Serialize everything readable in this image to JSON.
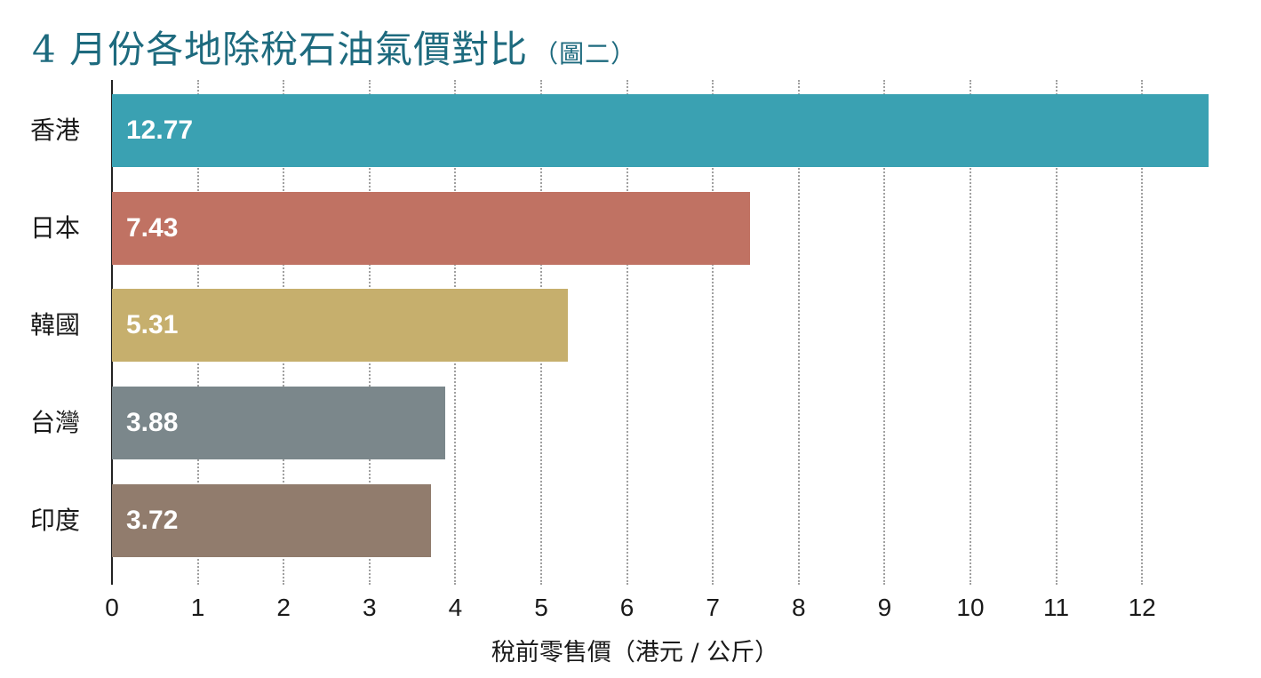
{
  "title": "4 月份各地除稅石油氣價對比",
  "subtitle": "（圖二）",
  "xlabel": "稅前零售價（港元 / 公斤）",
  "chart_data": {
    "type": "bar",
    "orientation": "horizontal",
    "title": "4 月份各地除稅石油氣價對比（圖二）",
    "xlabel": "稅前零售價（港元 / 公斤）",
    "ylabel": "",
    "categories": [
      "香港",
      "日本",
      "韓國",
      "台灣",
      "印度"
    ],
    "values": [
      12.77,
      7.43,
      5.31,
      3.88,
      3.72
    ],
    "value_labels": [
      "12.77",
      "7.43",
      "5.31",
      "3.88",
      "3.72"
    ],
    "colors": [
      "#3aa1b2",
      "#c07263",
      "#c6af6d",
      "#7b878b",
      "#917c6d"
    ],
    "xlim": [
      0,
      12.8
    ],
    "xticks": [
      "0",
      "1",
      "2",
      "3",
      "4",
      "5",
      "6",
      "7",
      "8",
      "9",
      "10",
      "11",
      "12"
    ],
    "grid": "vertical dotted",
    "legend": "none"
  }
}
